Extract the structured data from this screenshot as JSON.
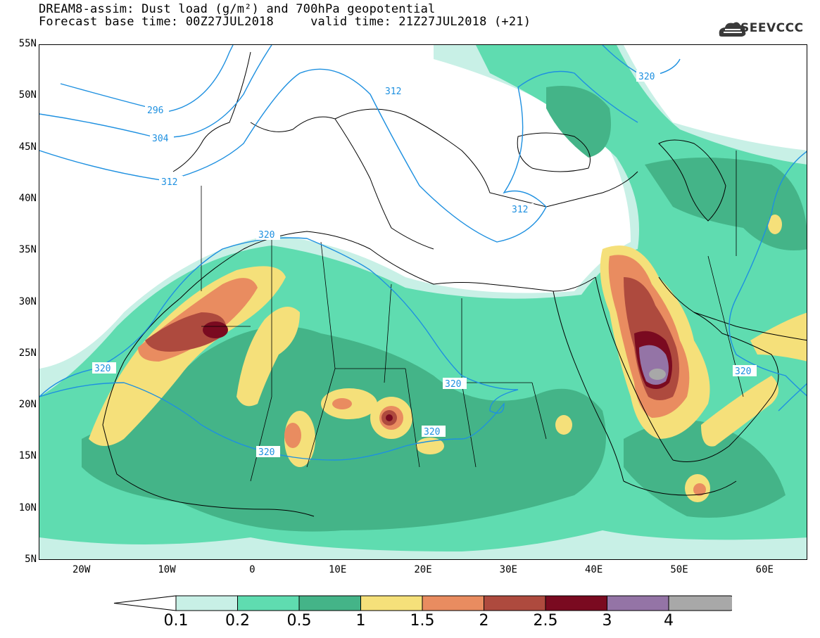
{
  "title": {
    "line1": "DREAM8-assim: Dust load (g/m²) and 700hPa geopotential",
    "line2": "Forecast base time: 00Z27JUL2018     valid time: 21Z27JUL2018 (+21)"
  },
  "logo": {
    "text": "SEEVCCC",
    "icon": "cloud-logo-icon"
  },
  "axes": {
    "lat_labels": [
      "55N",
      "50N",
      "45N",
      "40N",
      "35N",
      "30N",
      "25N",
      "20N",
      "15N",
      "10N",
      "5N"
    ],
    "lon_labels": [
      "20W",
      "10W",
      "0",
      "10E",
      "20E",
      "30E",
      "40E",
      "50E",
      "60E"
    ],
    "lat_range": [
      5,
      55
    ],
    "lon_range": [
      -25,
      65
    ]
  },
  "contour_labels": [
    "296",
    "304",
    "312",
    "320",
    "320",
    "320",
    "320",
    "320",
    "320",
    "312",
    "312",
    "320"
  ],
  "colorbar": {
    "labels": [
      "0.1",
      "0.2",
      "0.5",
      "1",
      "1.5",
      "2",
      "2.5",
      "3",
      "4"
    ],
    "colors": [
      "#c8f0e6",
      "#5fdcb0",
      "#44b488",
      "#f5e07a",
      "#e98c60",
      "#ae4a3e",
      "#7a0a20",
      "#9474a6",
      "#a8a8a8"
    ]
  },
  "colors": {
    "contour": "#1e90e0",
    "land_border": "#000000",
    "background": "#ffffff"
  }
}
